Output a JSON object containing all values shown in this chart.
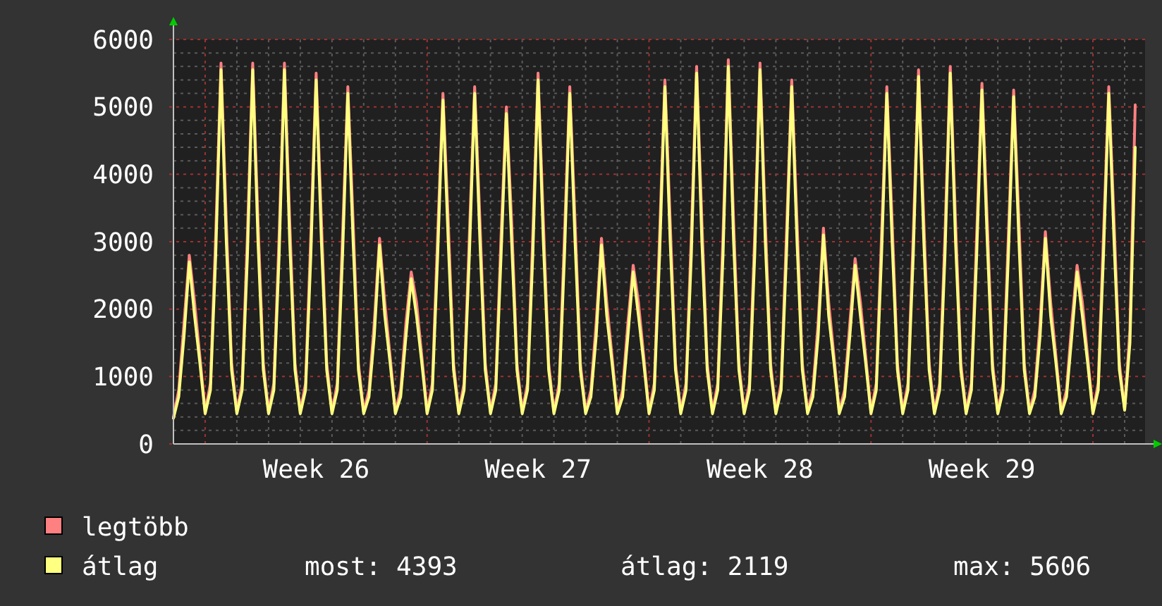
{
  "chart_data": {
    "type": "line",
    "categories": [
      null,
      null,
      null,
      null,
      null,
      null,
      null,
      null,
      null,
      null,
      null,
      null,
      null,
      null,
      null,
      null,
      null,
      null,
      null,
      null,
      null,
      null,
      null,
      null,
      null,
      null,
      null,
      "Week 26",
      null,
      null,
      null,
      null,
      null,
      null,
      null,
      null,
      null,
      null,
      null,
      null,
      null,
      null,
      null,
      null,
      null,
      null,
      null,
      null,
      null,
      null,
      null,
      null,
      null,
      null,
      null,
      null,
      null,
      null,
      null,
      null,
      null,
      null,
      null,
      null,
      null,
      null,
      null,
      null,
      null,
      "Week 27",
      null,
      null,
      null,
      null,
      null,
      null,
      null,
      null,
      null,
      null,
      null,
      null,
      null,
      null,
      null,
      null,
      null,
      null,
      null,
      null,
      null,
      null,
      null,
      null,
      null,
      null,
      null,
      null,
      null,
      null,
      null,
      null,
      null,
      null,
      null,
      null,
      null,
      null,
      null,
      null,
      null,
      "Week 28",
      null,
      null,
      null,
      null,
      null,
      null,
      null,
      null,
      null,
      null,
      null,
      null,
      null,
      null,
      null,
      null,
      null,
      null,
      null,
      null,
      null,
      null,
      null,
      null,
      null,
      null,
      null,
      null,
      null,
      null,
      null,
      null,
      null,
      null,
      null,
      null,
      null,
      null,
      null,
      null,
      null,
      "Week 29",
      null,
      null,
      null,
      null,
      null,
      null,
      null,
      null,
      null,
      null,
      null,
      null,
      null,
      null,
      null,
      null,
      null,
      null,
      null,
      null,
      null,
      null,
      null,
      null,
      null,
      null,
      null,
      null,
      null
    ],
    "series": [
      {
        "name": "legtöbb",
        "color": "#ff8080",
        "values": [
          400,
          800,
          1800,
          2800,
          2100,
          1300,
          480,
          900,
          3100,
          5650,
          3300,
          1200,
          480,
          900,
          3100,
          5650,
          3300,
          1200,
          480,
          900,
          3100,
          5650,
          3300,
          1200,
          480,
          900,
          3100,
          5500,
          3300,
          1200,
          480,
          900,
          3100,
          5300,
          3300,
          1200,
          480,
          800,
          1800,
          3050,
          2100,
          1300,
          480,
          800,
          1800,
          2550,
          2100,
          1300,
          480,
          900,
          3100,
          5200,
          3300,
          1200,
          480,
          900,
          3100,
          5300,
          3300,
          1200,
          480,
          900,
          3100,
          5000,
          3300,
          1200,
          480,
          900,
          3100,
          5500,
          3300,
          1200,
          480,
          900,
          3100,
          5300,
          3300,
          1200,
          480,
          800,
          1800,
          3050,
          2100,
          1300,
          480,
          800,
          1800,
          2650,
          2100,
          1300,
          480,
          900,
          3100,
          5400,
          3300,
          1200,
          480,
          900,
          3100,
          5600,
          3300,
          1200,
          480,
          900,
          3100,
          5700,
          3300,
          1200,
          480,
          900,
          3100,
          5650,
          3300,
          1200,
          480,
          900,
          3100,
          5400,
          3300,
          1200,
          480,
          800,
          1800,
          3200,
          2100,
          1300,
          480,
          800,
          1800,
          2750,
          2100,
          1300,
          480,
          900,
          3100,
          5300,
          3300,
          1200,
          480,
          900,
          3100,
          5550,
          3300,
          1200,
          480,
          900,
          3100,
          5600,
          3300,
          1200,
          480,
          900,
          3100,
          5350,
          3300,
          1200,
          480,
          900,
          3100,
          5250,
          3300,
          1200,
          480,
          800,
          1800,
          3150,
          2100,
          1300,
          480,
          800,
          1800,
          2650,
          2100,
          1300,
          480,
          900,
          3100,
          5300,
          3300,
          1200,
          520,
          1700,
          5030
        ]
      },
      {
        "name": "átlag",
        "color": "#ffff80",
        "values": [
          380,
          700,
          1600,
          2700,
          1900,
          1200,
          450,
          800,
          2800,
          5550,
          3000,
          1100,
          450,
          800,
          2800,
          5550,
          3000,
          1100,
          450,
          800,
          2800,
          5550,
          3000,
          1100,
          450,
          800,
          2800,
          5400,
          3000,
          1100,
          450,
          800,
          2800,
          5200,
          3000,
          1100,
          450,
          700,
          1600,
          2950,
          1900,
          1200,
          450,
          700,
          1600,
          2450,
          1900,
          1200,
          450,
          800,
          2800,
          5100,
          3000,
          1100,
          450,
          800,
          2800,
          5200,
          3000,
          1100,
          450,
          800,
          2800,
          4900,
          3000,
          1100,
          450,
          800,
          2800,
          5400,
          3000,
          1100,
          450,
          800,
          2800,
          5200,
          3000,
          1100,
          450,
          700,
          1600,
          2950,
          1900,
          1200,
          450,
          700,
          1600,
          2550,
          1900,
          1200,
          450,
          800,
          2800,
          5300,
          3000,
          1100,
          450,
          800,
          2800,
          5500,
          3000,
          1100,
          450,
          800,
          2800,
          5600,
          3000,
          1100,
          450,
          800,
          2800,
          5550,
          3000,
          1100,
          450,
          800,
          2800,
          5300,
          3000,
          1100,
          450,
          700,
          1600,
          3100,
          1900,
          1200,
          450,
          700,
          1600,
          2650,
          1900,
          1200,
          450,
          800,
          2800,
          5200,
          3000,
          1100,
          450,
          800,
          2800,
          5450,
          3000,
          1100,
          450,
          800,
          2800,
          5500,
          3000,
          1100,
          450,
          800,
          2800,
          5250,
          3000,
          1100,
          450,
          800,
          2800,
          5150,
          3000,
          1100,
          450,
          700,
          1600,
          3050,
          1900,
          1200,
          450,
          700,
          1600,
          2550,
          1900,
          1200,
          450,
          800,
          2800,
          5200,
          3000,
          1100,
          500,
          1500,
          4400
        ]
      }
    ],
    "ylim": [
      0,
      6000
    ],
    "yticks": [
      0,
      {
        "value": 200,
        "label": null
      },
      {
        "value": 400,
        "label": null
      },
      {
        "value": 600,
        "label": null
      },
      {
        "value": 800,
        "label": null
      },
      1000,
      {
        "value": 1200,
        "label": null
      },
      {
        "value": 1400,
        "label": null
      },
      {
        "value": 1600,
        "label": null
      },
      {
        "value": 1800,
        "label": null
      },
      2000,
      {
        "value": 2200,
        "label": null
      },
      {
        "value": 2400,
        "label": null
      },
      {
        "value": 2600,
        "label": null
      },
      {
        "value": 2800,
        "label": null
      },
      3000,
      {
        "value": 3200,
        "label": null
      },
      {
        "value": 3400,
        "label": null
      },
      {
        "value": 3600,
        "label": null
      },
      {
        "value": 3800,
        "label": null
      },
      4000,
      {
        "value": 4200,
        "label": null
      },
      {
        "value": 4400,
        "label": null
      },
      {
        "value": 4600,
        "label": null
      },
      {
        "value": 4800,
        "label": null
      },
      5000,
      {
        "value": 5200,
        "label": null
      },
      {
        "value": 5400,
        "label": null
      },
      {
        "value": 5600,
        "label": null
      },
      {
        "value": 5800,
        "label": null
      },
      6000
    ],
    "grid": true,
    "legend": "bottom left",
    "marker": "none",
    "line_style": "solid",
    "annotations": [
      "most: 4393",
      "átlag: 2119",
      "max: 5606"
    ]
  }
}
